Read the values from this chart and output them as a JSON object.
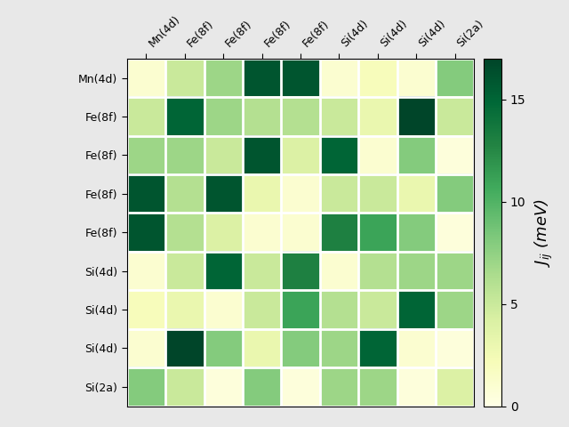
{
  "labels": [
    "Mn(4d)",
    "Fe(8f)",
    "Fe(8f)",
    "Fe(8f)",
    "Fe(8f)",
    "Si(4d)",
    "Si(4d)",
    "Si(4d)",
    "Si(2a)"
  ],
  "matrix": [
    [
      1.0,
      5.0,
      7.0,
      16.0,
      16.0,
      1.0,
      2.0,
      1.0,
      8.0
    ],
    [
      5.0,
      15.0,
      7.0,
      6.0,
      6.0,
      5.0,
      3.0,
      17.0,
      5.0
    ],
    [
      7.0,
      7.0,
      5.0,
      16.0,
      4.0,
      15.0,
      1.0,
      8.0,
      0.5
    ],
    [
      16.0,
      6.0,
      16.0,
      3.0,
      1.0,
      5.0,
      5.0,
      3.0,
      8.0
    ],
    [
      16.0,
      6.0,
      4.0,
      1.0,
      1.0,
      13.0,
      11.0,
      8.0,
      0.5
    ],
    [
      1.0,
      5.0,
      15.0,
      5.0,
      13.0,
      1.0,
      6.0,
      7.0,
      7.0
    ],
    [
      2.0,
      3.0,
      1.0,
      5.0,
      11.0,
      6.0,
      5.0,
      15.0,
      7.0
    ],
    [
      1.0,
      17.0,
      8.0,
      3.0,
      8.0,
      7.0,
      15.0,
      1.0,
      0.5
    ],
    [
      8.0,
      5.0,
      0.5,
      8.0,
      0.5,
      7.0,
      7.0,
      0.5,
      4.0
    ]
  ],
  "vmin": 0,
  "vmax": 17,
  "cbar_label": "$J_{ij}$ (meV)",
  "cbar_ticks": [
    0,
    5,
    10,
    15
  ],
  "colormap": "YlGn",
  "bg_color": "#e8e8e8",
  "figsize": [
    6.4,
    4.8
  ],
  "dpi": 100
}
